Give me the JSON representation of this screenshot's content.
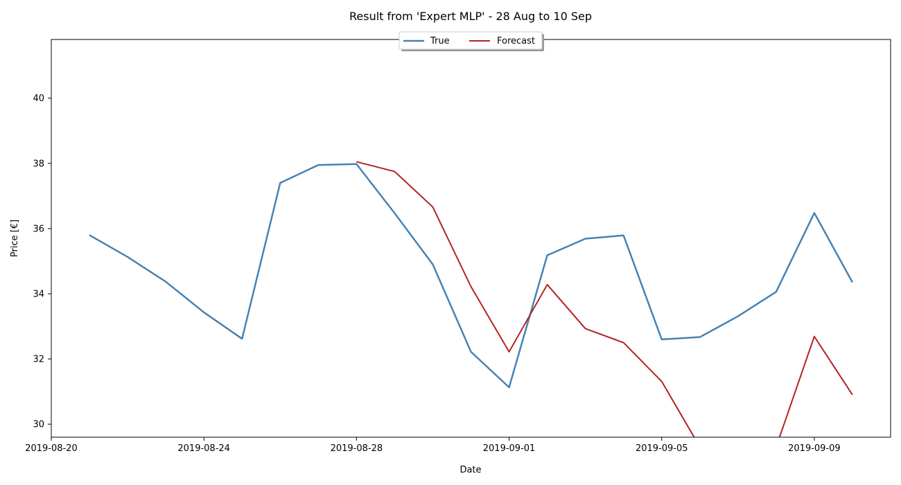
{
  "chart_data": {
    "type": "line",
    "title": "Result from 'Expert MLP' - 28 Aug to 10 Sep",
    "xlabel": "Date",
    "ylabel": "Price [€]",
    "xlim": [
      "2019-08-20",
      "2019-09-11"
    ],
    "ylim": [
      29.6,
      41.8
    ],
    "x_ticks": [
      "2019-08-20",
      "2019-08-24",
      "2019-08-28",
      "2019-09-01",
      "2019-09-05",
      "2019-09-09"
    ],
    "y_ticks": [
      30,
      32,
      34,
      36,
      38,
      40
    ],
    "grid": false,
    "legend_position": "top-center",
    "series": [
      {
        "name": "True",
        "color": "#4682b4",
        "x": [
          "2019-08-21",
          "2019-08-22",
          "2019-08-23",
          "2019-08-24",
          "2019-08-25",
          "2019-08-26",
          "2019-08-27",
          "2019-08-28",
          "2019-08-29",
          "2019-08-30",
          "2019-08-31",
          "2019-09-01",
          "2019-09-02",
          "2019-09-03",
          "2019-09-04",
          "2019-09-05",
          "2019-09-06",
          "2019-09-07",
          "2019-09-08",
          "2019-09-09",
          "2019-09-10"
        ],
        "y": [
          35.8,
          35.13,
          34.37,
          33.43,
          32.62,
          37.4,
          37.95,
          37.98,
          36.47,
          34.9,
          32.22,
          31.13,
          35.18,
          35.69,
          35.79,
          32.6,
          32.67,
          33.31,
          34.06,
          36.48,
          34.35
        ]
      },
      {
        "name": "Forecast",
        "color": "#b22222",
        "x": [
          "2019-08-28",
          "2019-08-29",
          "2019-08-30",
          "2019-08-31",
          "2019-09-01",
          "2019-09-02",
          "2019-09-03",
          "2019-09-04",
          "2019-09-05",
          "2019-09-06",
          "2019-09-07",
          "2019-09-08",
          "2019-09-09",
          "2019-09-10"
        ],
        "y": [
          38.05,
          37.75,
          36.66,
          34.22,
          32.22,
          34.28,
          32.93,
          32.5,
          31.31,
          29.3,
          29.1,
          29.3,
          32.69,
          30.9
        ]
      }
    ]
  }
}
